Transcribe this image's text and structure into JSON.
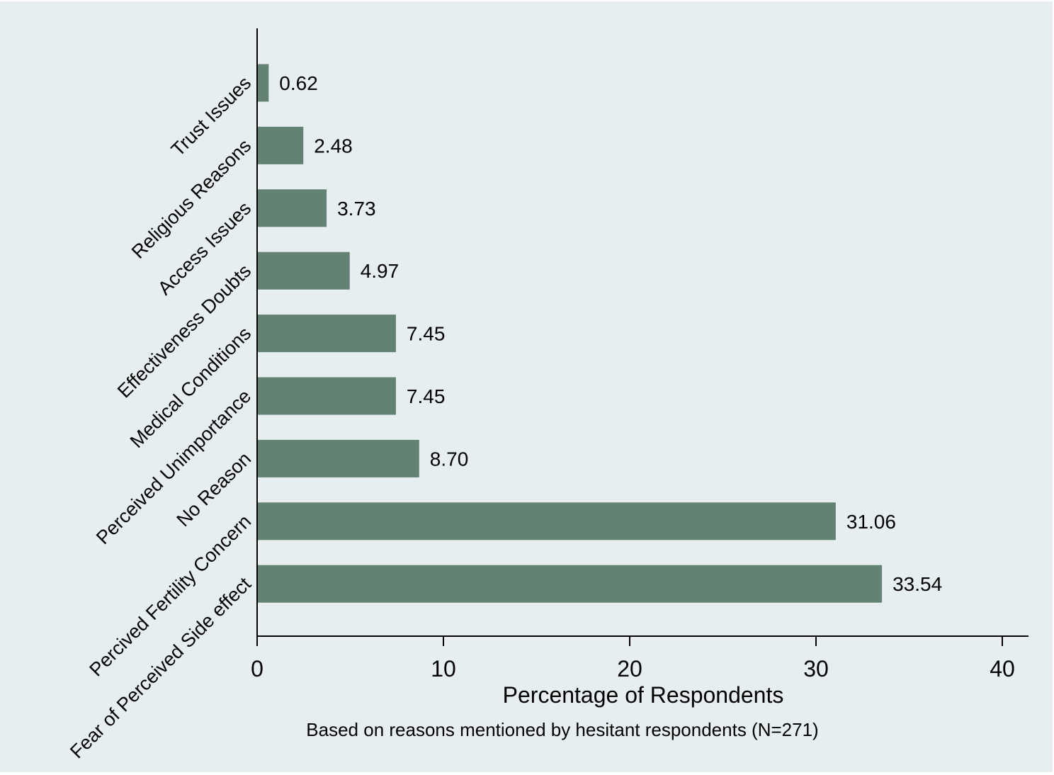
{
  "chart_data": {
    "type": "bar",
    "orientation": "horizontal",
    "categories": [
      "Trust Issues",
      "Religious Reasons",
      "Access Issues",
      "Effectiveness Doubts",
      "Medical Conditions",
      "Perceived Unimportance",
      "No Reason",
      "Percived Fertility Concern",
      "Fear of Perceived Side effect"
    ],
    "values": [
      0.62,
      2.48,
      3.73,
      4.97,
      7.45,
      7.45,
      8.7,
      31.06,
      33.54
    ],
    "data_labels": [
      "0.62",
      "2.48",
      "3.73",
      "4.97",
      "7.45",
      "7.45",
      "8.70",
      "31.06",
      "33.54"
    ],
    "title": "",
    "xlabel": "Percentage of Respondents",
    "note": "Based on reasons mentioned by hesitant respondents (N=271)",
    "ylabel": "",
    "xlim": [
      0,
      40
    ],
    "xticks": [
      "0",
      "10",
      "20",
      "30",
      "40"
    ],
    "grid": false,
    "legend": "none",
    "colors": {
      "bar": "#648274",
      "background": "#e6eef0",
      "axis": "#000000"
    }
  }
}
